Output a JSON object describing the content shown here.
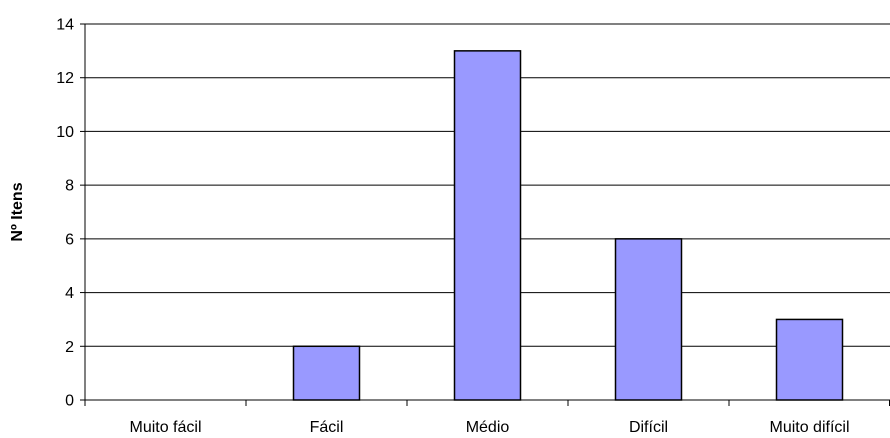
{
  "chart_data": {
    "type": "bar",
    "categories": [
      "Muito fácil",
      "Fácil",
      "Médio",
      "Difícil",
      "Muito difícil"
    ],
    "values": [
      0,
      2,
      13,
      6,
      3
    ],
    "title": "",
    "xlabel": "",
    "ylabel": "Nº Itens",
    "ylim": [
      0,
      14
    ],
    "yticks": [
      0,
      2,
      4,
      6,
      8,
      10,
      12,
      14
    ],
    "grid": true,
    "legend": "none",
    "colors": {
      "bar_fill": "#9999ff",
      "bar_stroke": "#000000",
      "grid": "#000000",
      "axis": "#000000"
    }
  }
}
